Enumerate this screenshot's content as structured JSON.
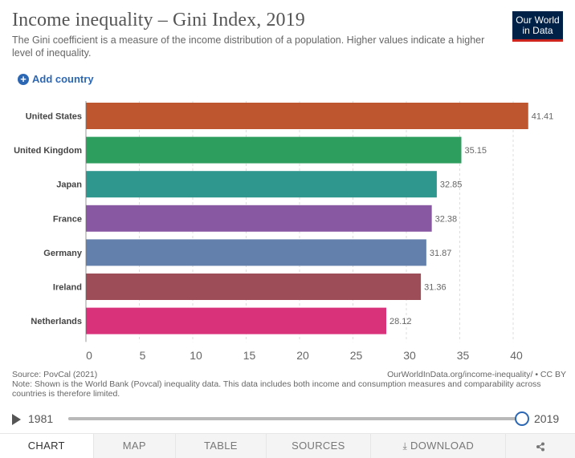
{
  "header": {
    "title": "Income inequality – Gini Index, 2019",
    "subtitle": "The Gini coefficient is a measure of the income distribution of a population. Higher values indicate a higher level of inequality.",
    "logo_line1": "Our World",
    "logo_line2": "in Data",
    "logo_bg": "#002147",
    "logo_accent": "#ce261e"
  },
  "controls": {
    "add_country_label": "Add country"
  },
  "chart_data": {
    "type": "bar",
    "orientation": "horizontal",
    "categories": [
      "United States",
      "United Kingdom",
      "Japan",
      "France",
      "Germany",
      "Ireland",
      "Netherlands"
    ],
    "values": [
      41.41,
      35.15,
      32.85,
      32.38,
      31.87,
      31.36,
      28.12
    ],
    "value_labels": [
      "41.41",
      "35.15",
      "32.85",
      "32.38",
      "31.87",
      "31.36",
      "28.12"
    ],
    "colors": [
      "#be5630",
      "#2e9e5e",
      "#30978f",
      "#8858a3",
      "#6380ac",
      "#9c4d57",
      "#d9327a"
    ],
    "xlim": [
      0,
      42
    ],
    "xticks": [
      "0",
      "5",
      "10",
      "15",
      "20",
      "25",
      "30",
      "35",
      "40"
    ],
    "grid": true
  },
  "footer": {
    "source": "Source: PovCal (2021)",
    "link": "OurWorldInData.org/income-inequality/ • CC BY",
    "note": "Note: Shown is the World Bank (Povcal) inequality data. This data includes both income and consumption measures and comparability across countries is therefore limited."
  },
  "timeline": {
    "start_year": "1981",
    "end_year": "2019",
    "progress": 1.0
  },
  "tabs": [
    {
      "label": "CHART"
    },
    {
      "label": "MAP"
    },
    {
      "label": "TABLE"
    },
    {
      "label": "SOURCES"
    },
    {
      "label": "DOWNLOAD"
    },
    {
      "label": ""
    }
  ]
}
